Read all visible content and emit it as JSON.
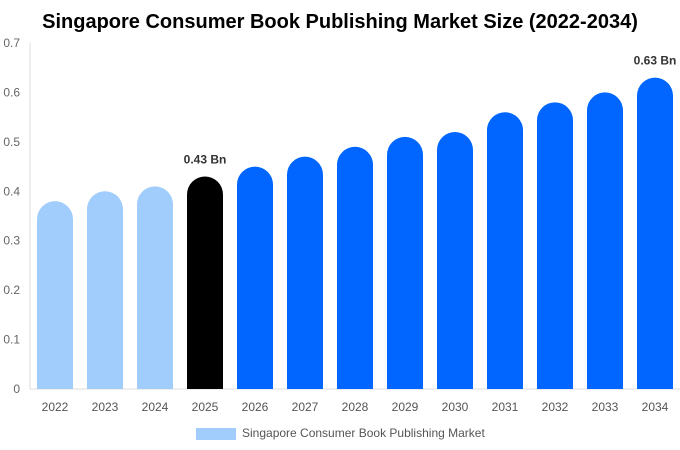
{
  "chart_data": {
    "type": "bar",
    "title": "Singapore Consumer Book Publishing Market Size (2022-2034)",
    "categories": [
      "2022",
      "2023",
      "2024",
      "2025",
      "2026",
      "2027",
      "2028",
      "2029",
      "2030",
      "2031",
      "2032",
      "2033",
      "2034"
    ],
    "series": [
      {
        "name": "Singapore Consumer Book Publishing Market",
        "values": [
          0.38,
          0.4,
          0.41,
          0.43,
          0.45,
          0.47,
          0.49,
          0.51,
          0.52,
          0.56,
          0.58,
          0.6,
          0.63
        ]
      }
    ],
    "data_labels": {
      "3": "0.43 Bn",
      "12": "0.63 Bn"
    },
    "ylim": [
      0,
      0.7
    ],
    "yticks": [
      "0",
      "0.1",
      "0.2",
      "0.3",
      "0.4",
      "0.5",
      "0.6",
      "0.7"
    ],
    "grid": false,
    "legend": "bottom",
    "colors": {
      "historical": "#a0cdfc",
      "current": "#000000",
      "forecast": "#0066ff",
      "legend": "#a0cdfc"
    }
  }
}
